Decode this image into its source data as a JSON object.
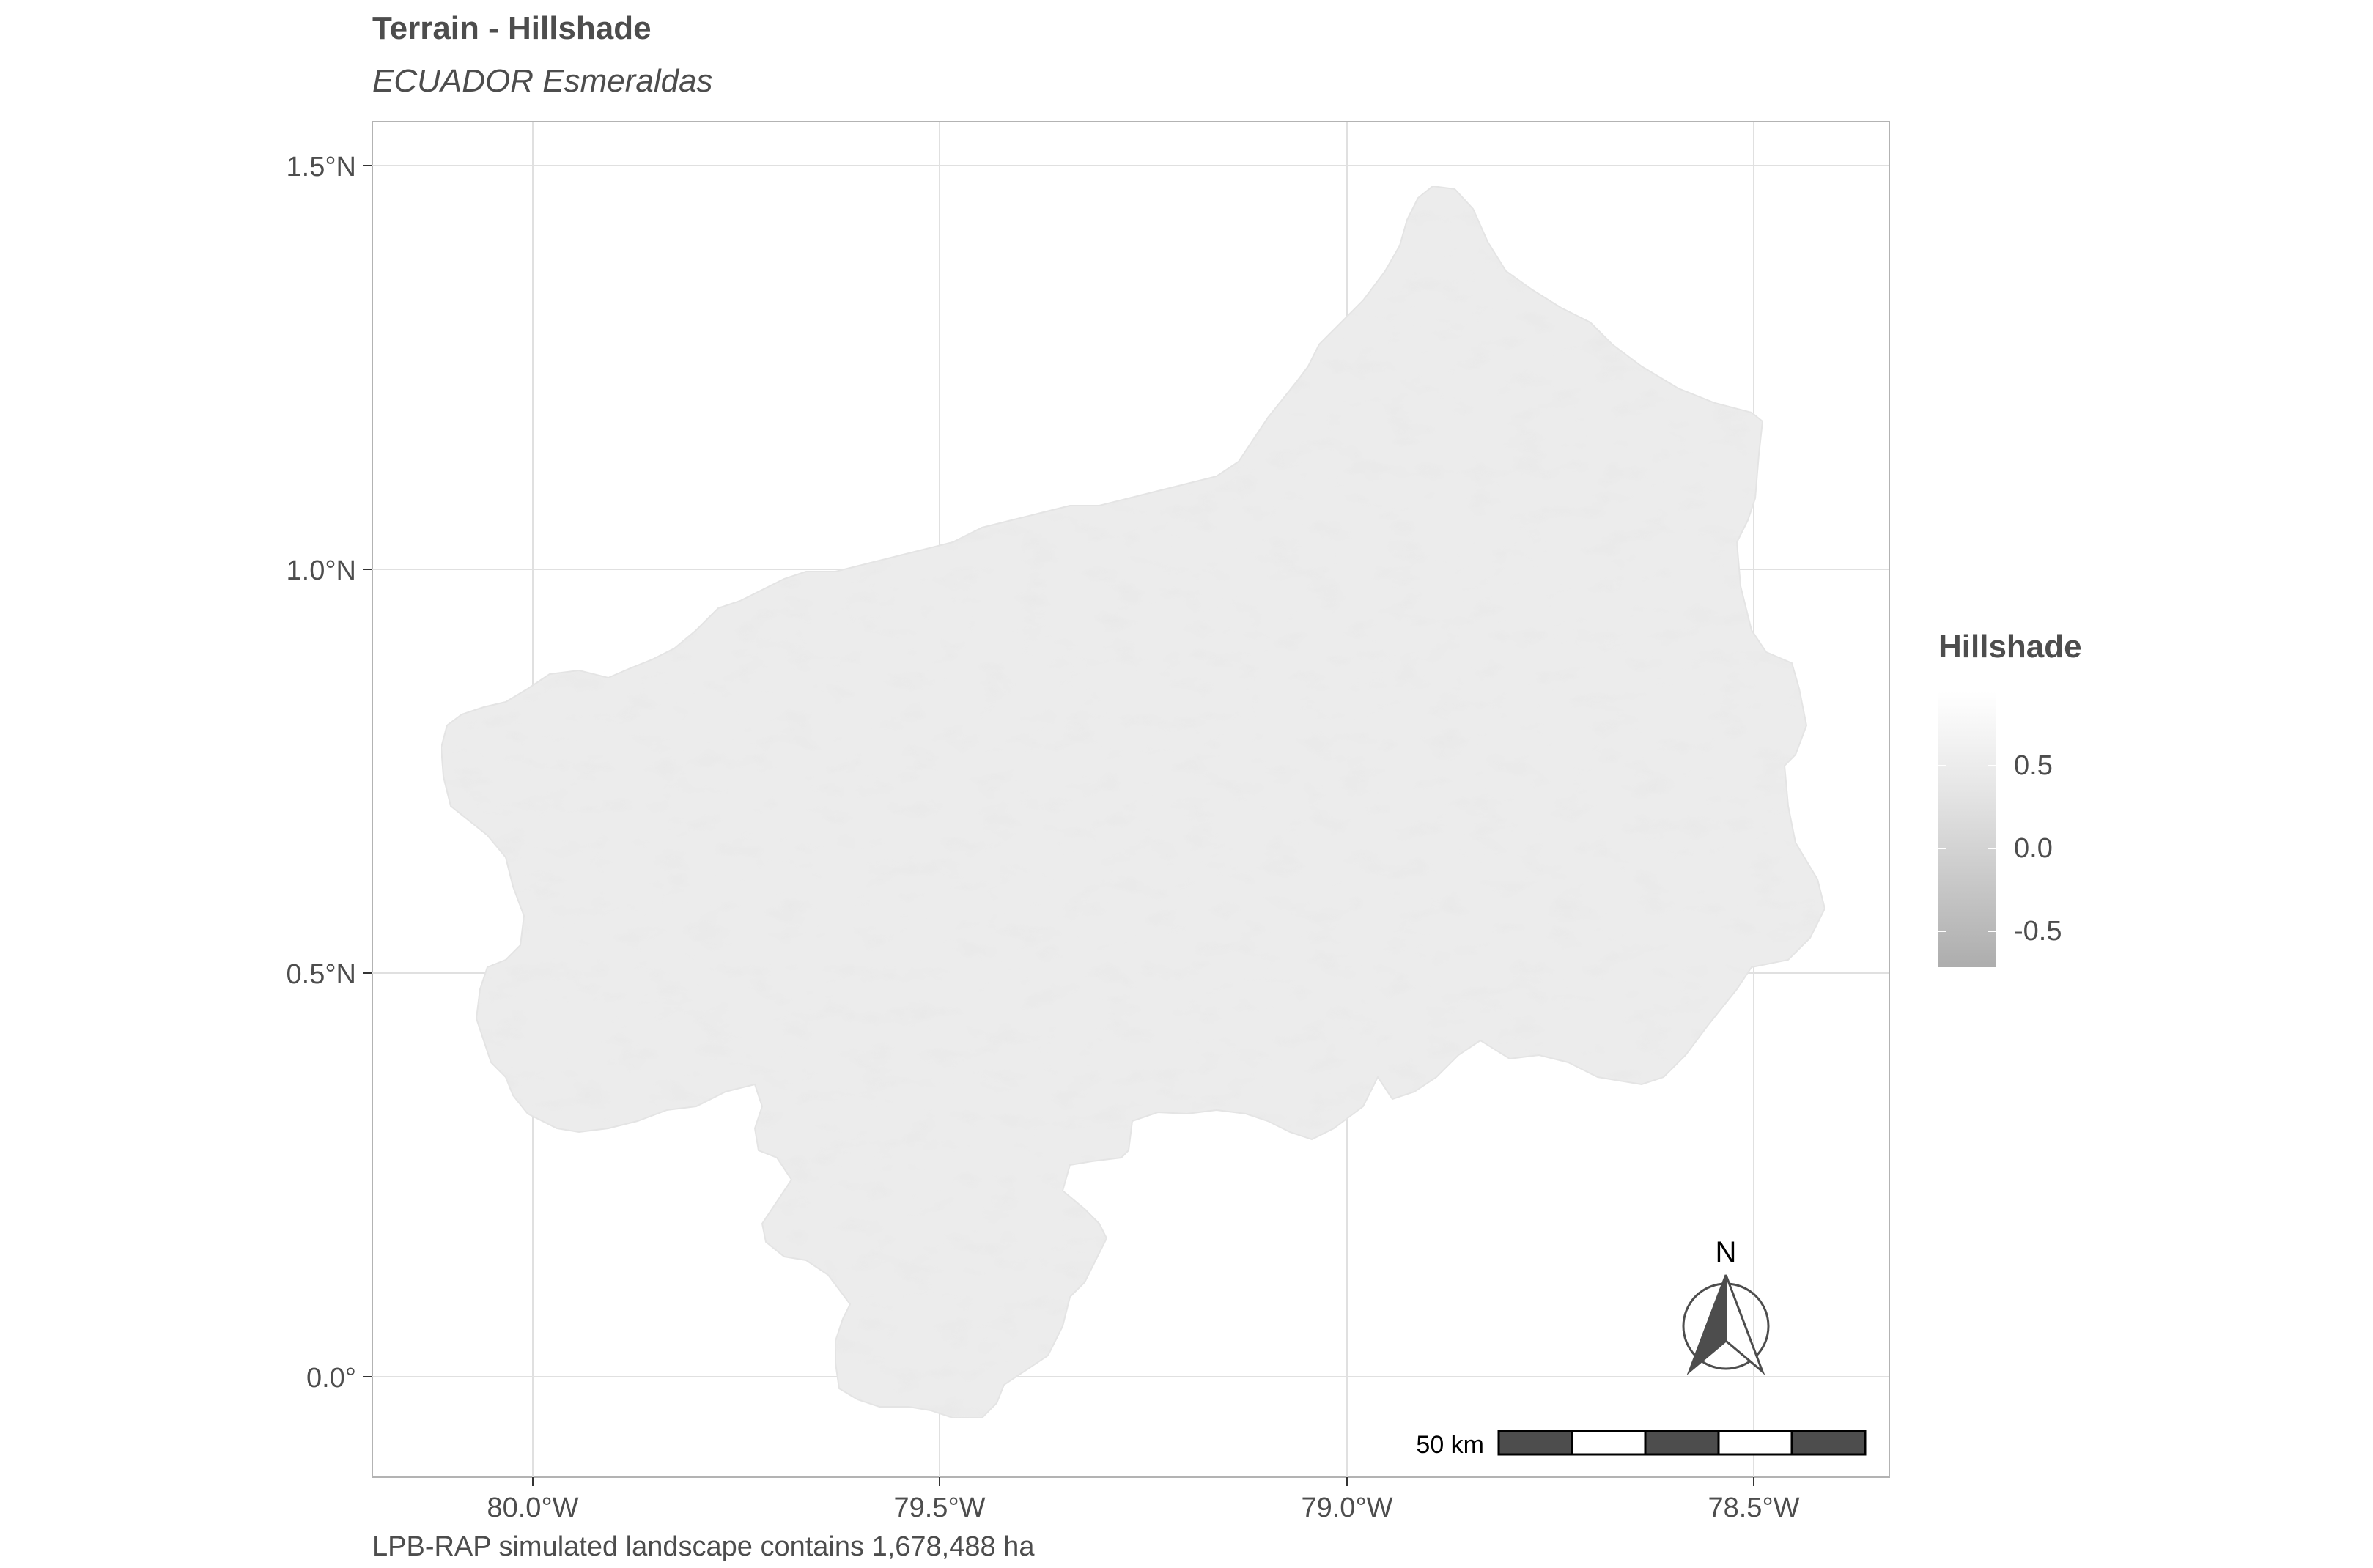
{
  "title": "Terrain - Hillshade",
  "subtitle": "ECUADOR Esmeraldas",
  "caption": "LPB-RAP simulated landscape contains 1,678,488 ha",
  "axes": {
    "y_ticks": [
      "1.5°N",
      "1.0°N",
      "0.5°N",
      "0.0°"
    ],
    "x_ticks": [
      "80.0°W",
      "79.5°W",
      "79.0°W",
      "78.5°W"
    ]
  },
  "legend": {
    "title": "Hillshade",
    "labels": [
      "0.5",
      "0.0",
      "-0.5"
    ],
    "colors": {
      "high": "#ffffff",
      "low": "#adadad"
    }
  },
  "scale_bar": {
    "label": "50 km",
    "segments": 5,
    "colors": [
      "#4d4d4d",
      "#ffffff"
    ]
  },
  "north_arrow": {
    "label": "N"
  },
  "colors": {
    "panel_border": "#b3b3b3",
    "grid": "#e0e0e0",
    "land": "#ececec"
  }
}
